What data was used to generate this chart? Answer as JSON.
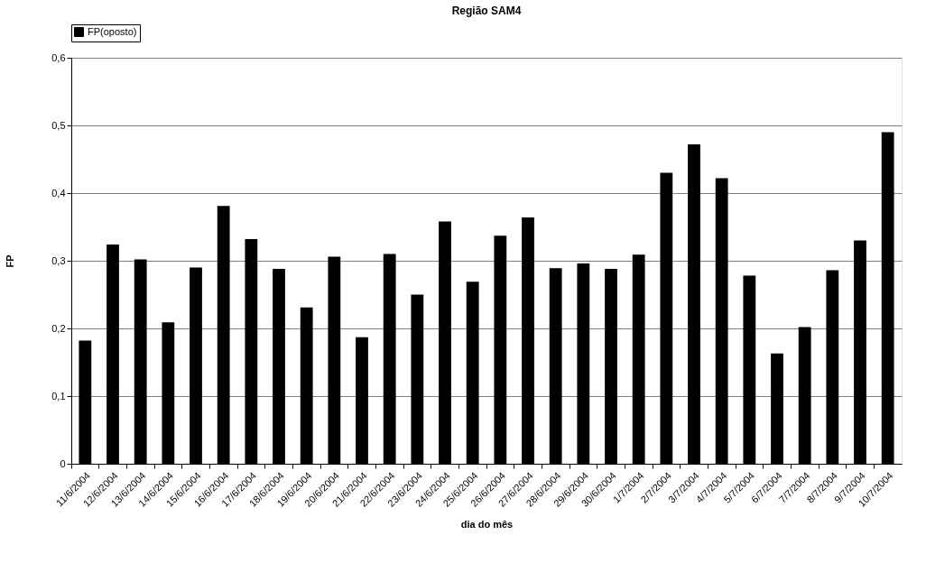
{
  "chart_data": {
    "type": "bar",
    "title": "Região SAM4",
    "xlabel": "dia do mês",
    "ylabel": "FP",
    "categories": [
      "11/6/2004",
      "12/6/2004",
      "13/6/2004",
      "14/6/2004",
      "15/6/2004",
      "16/6/2004",
      "17/6/2004",
      "18/6/2004",
      "19/6/2004",
      "20/6/2004",
      "21/6/2004",
      "22/6/2004",
      "23/6/2004",
      "24/6/2004",
      "25/6/2004",
      "26/6/2004",
      "27/6/2004",
      "28/6/2004",
      "29/6/2004",
      "30/6/2004",
      "1/7/2004",
      "2/7/2004",
      "3/7/2004",
      "4/7/2004",
      "5/7/2004",
      "6/7/2004",
      "7/7/2004",
      "8/7/2004",
      "9/7/2004",
      "10/7/2004"
    ],
    "series": [
      {
        "name": "FP(oposto)",
        "color": "#000000",
        "values": [
          0.182,
          0.324,
          0.302,
          0.209,
          0.29,
          0.381,
          0.332,
          0.288,
          0.231,
          0.306,
          0.187,
          0.31,
          0.25,
          0.358,
          0.269,
          0.337,
          0.364,
          0.289,
          0.296,
          0.288,
          0.309,
          0.43,
          0.472,
          0.422,
          0.278,
          0.163,
          0.202,
          0.286,
          0.33,
          0.49
        ]
      }
    ],
    "ylim": [
      0,
      0.6
    ],
    "yticks": [
      0,
      {
        "value": 0.1,
        "label": "0,1"
      },
      {
        "value": 0.2,
        "label": "0,2"
      },
      {
        "value": 0.3,
        "label": "0,3"
      },
      {
        "value": 0.4,
        "label": "0,4"
      },
      {
        "value": 0.5,
        "label": "0,5"
      },
      {
        "value": 0.6,
        "label": "0,6"
      }
    ],
    "grid": "y",
    "legend": "top"
  }
}
